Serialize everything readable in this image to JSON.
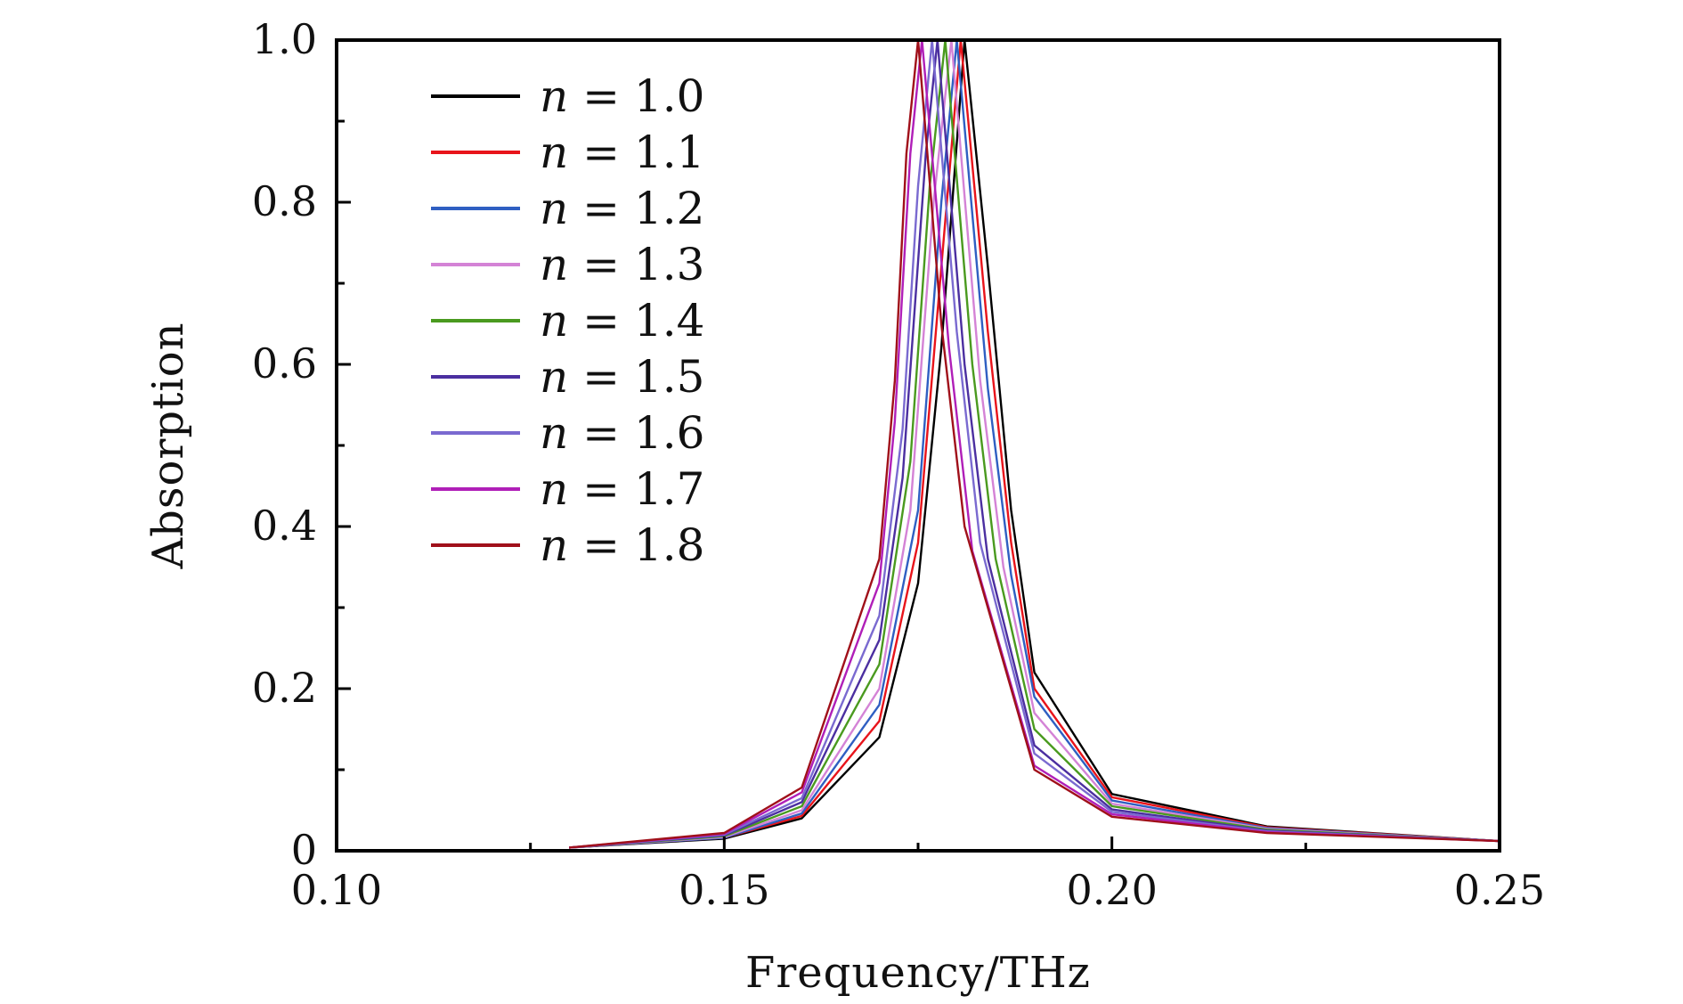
{
  "chart_data": {
    "type": "line",
    "title": "",
    "xlabel": "Frequency/THz",
    "ylabel": "Absorption",
    "xlim": [
      0.1,
      0.25
    ],
    "ylim": [
      0,
      1.0
    ],
    "x_ticks": [
      "0.10",
      "0.15",
      "0.20",
      "0.25"
    ],
    "x_tick_values": [
      0.1,
      0.15,
      0.2,
      0.25
    ],
    "y_ticks": [
      "0",
      "0.2",
      "0.4",
      "0.6",
      "0.8",
      "1.0"
    ],
    "y_tick_values": [
      0,
      0.2,
      0.4,
      0.6,
      0.8,
      1.0
    ],
    "grid": false,
    "legend_position": "top-left",
    "series": [
      {
        "name": "n = 1.0",
        "label_var": "n",
        "label_value": "1.0",
        "color": "#000000",
        "x": [
          0.13,
          0.15,
          0.16,
          0.17,
          0.175,
          0.178,
          0.181,
          0.184,
          0.187,
          0.19,
          0.2,
          0.22,
          0.25
        ],
        "y": [
          0.004,
          0.015,
          0.04,
          0.14,
          0.33,
          0.62,
          1.0,
          0.72,
          0.42,
          0.22,
          0.07,
          0.03,
          0.012
        ]
      },
      {
        "name": "n = 1.1",
        "label_var": "n",
        "label_value": "1.1",
        "color": "#e8141b",
        "x": [
          0.13,
          0.15,
          0.16,
          0.17,
          0.175,
          0.178,
          0.1805,
          0.184,
          0.187,
          0.19,
          0.2,
          0.22,
          0.25
        ],
        "y": [
          0.004,
          0.016,
          0.043,
          0.16,
          0.38,
          0.72,
          1.0,
          0.64,
          0.38,
          0.2,
          0.066,
          0.029,
          0.012
        ]
      },
      {
        "name": "n = 1.2",
        "label_var": "n",
        "label_value": "1.2",
        "color": "#2f5fc2",
        "x": [
          0.13,
          0.15,
          0.16,
          0.17,
          0.175,
          0.178,
          0.18,
          0.184,
          0.187,
          0.19,
          0.2,
          0.22,
          0.25
        ],
        "y": [
          0.004,
          0.016,
          0.046,
          0.18,
          0.42,
          0.8,
          1.0,
          0.57,
          0.34,
          0.19,
          0.062,
          0.028,
          0.012
        ]
      },
      {
        "name": "n = 1.3",
        "label_var": "n",
        "label_value": "1.3",
        "color": "#d483d6",
        "x": [
          0.13,
          0.15,
          0.16,
          0.17,
          0.174,
          0.177,
          0.1793,
          0.183,
          0.186,
          0.19,
          0.2,
          0.22,
          0.25
        ],
        "y": [
          0.004,
          0.017,
          0.05,
          0.2,
          0.42,
          0.8,
          1.0,
          0.58,
          0.35,
          0.17,
          0.058,
          0.027,
          0.012
        ]
      },
      {
        "name": "n = 1.4",
        "label_var": "n",
        "label_value": "1.4",
        "color": "#4a9a1f",
        "x": [
          0.13,
          0.15,
          0.16,
          0.17,
          0.174,
          0.1765,
          0.1785,
          0.182,
          0.185,
          0.19,
          0.2,
          0.22,
          0.25
        ],
        "y": [
          0.004,
          0.018,
          0.055,
          0.23,
          0.48,
          0.82,
          1.0,
          0.6,
          0.36,
          0.15,
          0.055,
          0.026,
          0.012
        ]
      },
      {
        "name": "n = 1.5",
        "label_var": "n",
        "label_value": "1.5",
        "color": "#4b2fa0",
        "x": [
          0.13,
          0.15,
          0.16,
          0.17,
          0.173,
          0.176,
          0.1775,
          0.181,
          0.184,
          0.19,
          0.2,
          0.22,
          0.25
        ],
        "y": [
          0.004,
          0.019,
          0.06,
          0.26,
          0.46,
          0.86,
          1.0,
          0.6,
          0.36,
          0.13,
          0.051,
          0.025,
          0.012
        ]
      },
      {
        "name": "n = 1.6",
        "label_var": "n",
        "label_value": "1.6",
        "color": "#7a6ad0",
        "x": [
          0.13,
          0.15,
          0.16,
          0.17,
          0.173,
          0.175,
          0.1768,
          0.18,
          0.183,
          0.19,
          0.2,
          0.22,
          0.25
        ],
        "y": [
          0.004,
          0.02,
          0.065,
          0.29,
          0.52,
          0.82,
          1.0,
          0.64,
          0.38,
          0.12,
          0.048,
          0.024,
          0.012
        ]
      },
      {
        "name": "n = 1.7",
        "label_var": "n",
        "label_value": "1.7",
        "color": "#b01fb8",
        "x": [
          0.13,
          0.15,
          0.16,
          0.17,
          0.172,
          0.174,
          0.1755,
          0.179,
          0.182,
          0.19,
          0.2,
          0.22,
          0.25
        ],
        "y": [
          0.004,
          0.021,
          0.072,
          0.33,
          0.53,
          0.86,
          1.0,
          0.62,
          0.37,
          0.105,
          0.045,
          0.023,
          0.012
        ]
      },
      {
        "name": "n = 1.8",
        "label_var": "n",
        "label_value": "1.8",
        "color": "#a0101a",
        "x": [
          0.13,
          0.15,
          0.16,
          0.17,
          0.172,
          0.1735,
          0.175,
          0.178,
          0.181,
          0.19,
          0.2,
          0.22,
          0.25
        ],
        "y": [
          0.004,
          0.022,
          0.078,
          0.36,
          0.58,
          0.86,
          1.0,
          0.65,
          0.4,
          0.1,
          0.042,
          0.022,
          0.012
        ]
      }
    ]
  }
}
